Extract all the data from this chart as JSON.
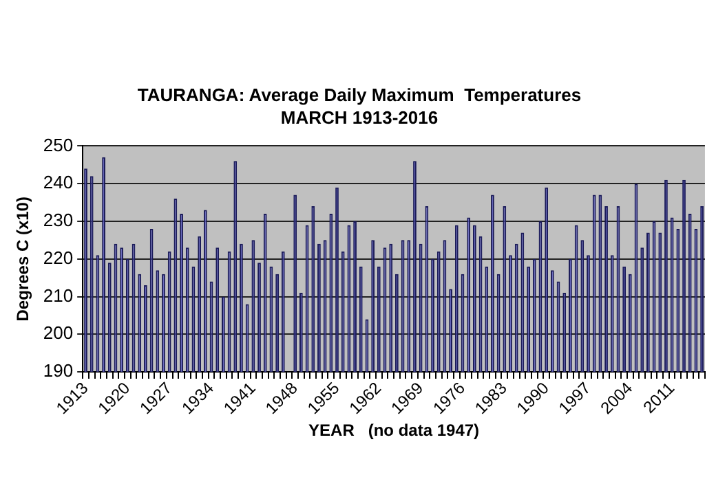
{
  "chart_data": {
    "type": "bar",
    "title": "TAURANGA: Average Daily Maximum  Temperatures",
    "subtitle": "MARCH 1913-2016",
    "xlabel": "YEAR   (no data 1947)",
    "ylabel": "Degrees C (x10)",
    "categories": [
      "1913",
      null,
      null,
      null,
      null,
      null,
      null,
      "1920",
      null,
      null,
      null,
      null,
      null,
      null,
      "1927",
      null,
      null,
      null,
      null,
      null,
      null,
      "1934",
      null,
      null,
      null,
      null,
      null,
      null,
      "1941",
      null,
      null,
      null,
      null,
      null,
      null,
      "1948",
      null,
      null,
      null,
      null,
      null,
      null,
      "1955",
      null,
      null,
      null,
      null,
      null,
      null,
      "1962",
      null,
      null,
      null,
      null,
      null,
      null,
      "1969",
      null,
      null,
      null,
      null,
      null,
      null,
      "1976",
      null,
      null,
      null,
      null,
      null,
      null,
      "1983",
      null,
      null,
      null,
      null,
      null,
      null,
      "1990",
      null,
      null,
      null,
      null,
      null,
      null,
      "1997",
      null,
      null,
      null,
      null,
      null,
      null,
      "2004",
      null,
      null,
      null,
      null,
      null,
      null,
      "2011",
      null,
      null,
      null,
      null,
      null
    ],
    "values": [
      244,
      242,
      221,
      247,
      219,
      224,
      223,
      220,
      224,
      216,
      213,
      228,
      217,
      216,
      222,
      236,
      232,
      223,
      218,
      226,
      233,
      214,
      223,
      210,
      222,
      246,
      224,
      208,
      225,
      219,
      232,
      218,
      216,
      222,
      null,
      237,
      211,
      229,
      234,
      224,
      225,
      232,
      239,
      222,
      229,
      230,
      218,
      204,
      225,
      218,
      223,
      224,
      216,
      225,
      225,
      246,
      224,
      234,
      220,
      222,
      225,
      212,
      229,
      216,
      231,
      229,
      226,
      218,
      237,
      216,
      234,
      221,
      224,
      227,
      218,
      220,
      230,
      239,
      217,
      214,
      211,
      220,
      229,
      225,
      221,
      237,
      237,
      234,
      221,
      234,
      218,
      216,
      240,
      223,
      227,
      230,
      227,
      241,
      231,
      228,
      241,
      232,
      228,
      234
    ],
    "color": "#6262c8",
    "ylim": [
      190,
      250
    ],
    "yticks": [
      190,
      200,
      210,
      220,
      230,
      240,
      250
    ],
    "grid": "y",
    "legend": false
  }
}
